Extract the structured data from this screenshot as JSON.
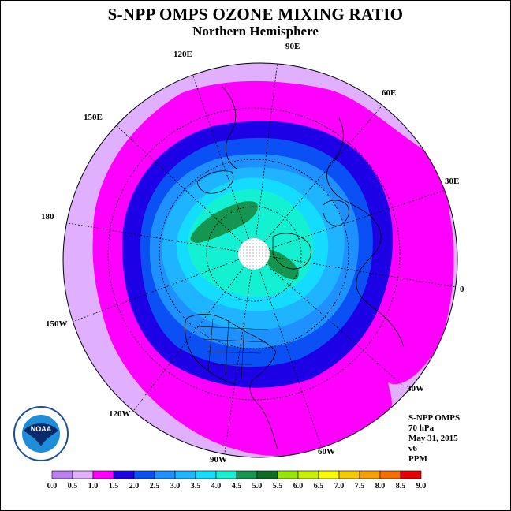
{
  "title": "S-NPP OMPS OZONE MIXING RATIO",
  "subtitle": "Northern Hemisphere",
  "longitude_labels": [
    "90E",
    "60E",
    "30E",
    "0",
    "30W",
    "60W",
    "90W",
    "120W",
    "150W",
    "180",
    "150E",
    "120E"
  ],
  "info": {
    "instrument": "S-NPP OMPS",
    "pressure": "70 hPa",
    "date": "May 31, 2015",
    "version": "v6",
    "units": "PPM"
  },
  "logo": {
    "text": "NOAA",
    "icon": "noaa-logo"
  },
  "colorbar": {
    "ticks": [
      "0.0",
      "0.5",
      "1.0",
      "1.5",
      "2.0",
      "2.5",
      "3.0",
      "3.5",
      "4.0",
      "4.5",
      "5.0",
      "5.5",
      "6.0",
      "6.5",
      "7.0",
      "7.5",
      "8.0",
      "8.5",
      "9.0"
    ],
    "colors": [
      "#b97ff0",
      "#e0b0ff",
      "#ff00ff",
      "#1e00e6",
      "#0a50f5",
      "#1e90ff",
      "#1eb4ff",
      "#14dcff",
      "#14f0d2",
      "#149650",
      "#0a6e28",
      "#96e600",
      "#c8f000",
      "#fafa00",
      "#f5c800",
      "#f5a000",
      "#f56e00",
      "#e60000",
      "#8c5a3c"
    ]
  },
  "colors": {
    "low_outer": "#e0b0ff",
    "band_magenta": "#ff00ff",
    "band_darkblue": "#1e00e6",
    "band_blue": "#0a50f5",
    "band_sky": "#1e90ff",
    "band_lightsky": "#1eb4ff",
    "band_cyan": "#14dcff",
    "band_aqua": "#14f0d2",
    "band_green": "#149650"
  }
}
